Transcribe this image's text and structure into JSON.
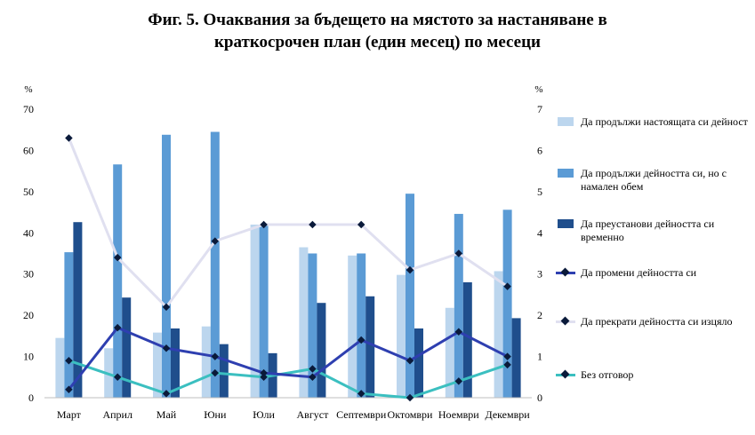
{
  "title_line1": "Фиг. 5. Очаквания за бъдещето на мястото за настаняване в",
  "title_line2": "краткосрочен план (един месец) по месеци",
  "chart_data": {
    "type": "bar",
    "categories": [
      "Март",
      "Април",
      "Май",
      "Юни",
      "Юли",
      "Август",
      "Септември",
      "Октомври",
      "Ноември",
      "Декември"
    ],
    "left_axis": {
      "label": "%",
      "ylim": [
        0,
        70
      ],
      "ticks": [
        0,
        10,
        20,
        30,
        40,
        50,
        60,
        70
      ]
    },
    "right_axis": {
      "label": "%",
      "ylim": [
        0,
        7
      ],
      "ticks": [
        0,
        1,
        2,
        3,
        4,
        5,
        6,
        7
      ]
    },
    "bar_series": [
      {
        "name": "Да продължи настоящата си дейност",
        "color": "#bcd6ee",
        "values": [
          14.5,
          12.0,
          15.8,
          17.3,
          42.0,
          36.5,
          34.5,
          29.8,
          21.8,
          30.7
        ]
      },
      {
        "name": "Да продължи дейността си, но с намален обем",
        "color": "#5b9bd5",
        "values": [
          35.3,
          56.6,
          63.8,
          64.5,
          42.0,
          35.0,
          35.0,
          49.5,
          44.6,
          45.6
        ]
      },
      {
        "name": "Да преустанови дейността си временно",
        "color": "#1f4e8c",
        "values": [
          42.6,
          24.3,
          16.8,
          13.0,
          10.8,
          23.0,
          24.6,
          16.8,
          28.0,
          19.3
        ]
      }
    ],
    "line_series": [
      {
        "name": "Да промени дейността си",
        "axis": "right",
        "color": "#2e3fb0",
        "values": [
          0.2,
          1.7,
          1.2,
          1.0,
          0.6,
          0.5,
          1.4,
          0.9,
          1.6,
          1.0
        ]
      },
      {
        "name": "Да прекрати дейността си изцяло",
        "axis": "right",
        "color": "#e0e0f0",
        "values": [
          6.3,
          3.4,
          2.2,
          3.8,
          4.2,
          4.2,
          4.2,
          3.1,
          3.5,
          2.7
        ]
      },
      {
        "name": "Без отговор",
        "axis": "right",
        "color": "#3bbfc0",
        "values": [
          0.9,
          0.5,
          0.1,
          0.6,
          0.5,
          0.7,
          0.1,
          0.0,
          0.4,
          0.8
        ]
      }
    ],
    "legend_position": "right",
    "grid": false
  }
}
